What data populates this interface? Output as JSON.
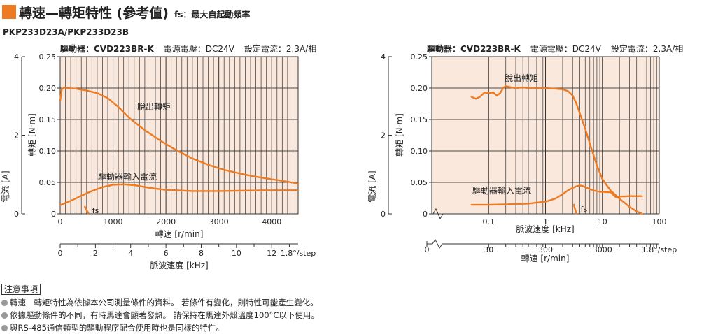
{
  "header": {
    "title": "轉速—轉矩特性 (參考值)",
    "subtitle": "fs：最大自起動頻率",
    "model": "PKP233D23A/PKP233D23B"
  },
  "colors": {
    "accent": "#ee7b22",
    "plot_bg": "#fbe8dc",
    "curve": "#ee7b22",
    "grid": "#4a4a4a"
  },
  "chart_data": [
    {
      "type": "line",
      "info": {
        "driver": "驅動器：CVD223BR-K",
        "voltage": "電源電壓：DC24V",
        "current": "設定電流：2.3A/相"
      },
      "x_axis": {
        "scale": "linear",
        "label": "轉速 [r/min]",
        "range": [
          0,
          4500
        ],
        "ticks": [
          "0",
          "1000",
          "2000",
          "3000",
          "4000"
        ]
      },
      "x2_axis": {
        "label": "脈波速度 [kHz]",
        "range": [
          0,
          13.5
        ],
        "ticks": [
          "0",
          "2",
          "4",
          "6",
          "8",
          "10",
          "12"
        ],
        "step_note": "1.8°/step"
      },
      "y_axis": {
        "label": "轉矩 [N·m]",
        "range": [
          0,
          0.25
        ],
        "ticks": [
          "0",
          "0.05",
          "0.10",
          "0.15",
          "0.20",
          "0.25"
        ]
      },
      "y2_axis": {
        "label": "電流 [A]",
        "range": [
          0,
          4
        ],
        "ticks": [
          "0",
          "2",
          "4"
        ]
      },
      "series": [
        {
          "name": "脫出轉矩",
          "axis": "torque",
          "x": [
            0,
            30,
            80,
            150,
            300,
            500,
            700,
            900,
            1100,
            1300,
            1600,
            1900,
            2200,
            2500,
            2800,
            3100,
            3400,
            3700,
            4000,
            4300,
            4500
          ],
          "y": [
            0.18,
            0.198,
            0.201,
            0.2,
            0.199,
            0.196,
            0.192,
            0.184,
            0.17,
            0.153,
            0.133,
            0.116,
            0.101,
            0.088,
            0.078,
            0.07,
            0.064,
            0.059,
            0.055,
            0.051,
            0.048
          ]
        },
        {
          "name": "驅動器輸入電流",
          "axis": "current",
          "x": [
            0,
            200,
            400,
            600,
            800,
            1000,
            1200,
            1400,
            1700,
            2000,
            2500,
            3000,
            3500,
            4000,
            4500
          ],
          "y": [
            0.22,
            0.33,
            0.46,
            0.58,
            0.68,
            0.74,
            0.75,
            0.73,
            0.66,
            0.61,
            0.58,
            0.58,
            0.59,
            0.6,
            0.6
          ]
        }
      ],
      "fs_label": "fs",
      "fs_x": 500
    },
    {
      "type": "line",
      "info": {
        "driver": "驅動器：CVD223BR-K",
        "voltage": "電源電壓：DC24V",
        "current": "設定電流：2.3A/相"
      },
      "x_axis": {
        "scale": "log",
        "label": "脈波速度 [kHz]",
        "range": [
          0.01,
          100
        ],
        "ticks": [
          "0.1",
          "1",
          "10",
          "100"
        ]
      },
      "x2_axis": {
        "label": "轉速 [r/min]",
        "ticks": [
          "0",
          "30",
          "300",
          "3000"
        ],
        "step_note": "1.8°/step"
      },
      "y_axis": {
        "label": "轉矩 [N·m]",
        "range": [
          0,
          0.25
        ],
        "ticks": [
          "0",
          "0.05",
          "0.10",
          "0.15",
          "0.20",
          "0.25"
        ]
      },
      "y2_axis": {
        "label": "電流 [A]",
        "range": [
          0,
          4
        ],
        "ticks": [
          "0",
          "2",
          "4"
        ]
      },
      "series": [
        {
          "name": "脫出轉矩",
          "axis": "torque",
          "x": [
            0.05,
            0.06,
            0.07,
            0.085,
            0.1,
            0.12,
            0.14,
            0.16,
            0.18,
            0.2,
            0.25,
            0.3,
            0.4,
            0.5,
            0.7,
            1.0,
            1.5,
            2.0,
            2.5,
            3.0,
            3.5,
            4.0,
            5.0,
            6.0,
            7.0,
            8.0,
            10,
            12,
            14,
            17,
            20,
            25,
            30,
            40,
            50
          ],
          "y": [
            0.186,
            0.183,
            0.186,
            0.193,
            0.192,
            0.193,
            0.188,
            0.192,
            0.2,
            0.203,
            0.201,
            0.2,
            0.201,
            0.2,
            0.2,
            0.2,
            0.199,
            0.198,
            0.195,
            0.188,
            0.175,
            0.16,
            0.135,
            0.112,
            0.093,
            0.077,
            0.055,
            0.045,
            0.037,
            0.03,
            0.024,
            0.017,
            0.011,
            0.004,
            0.0
          ]
        },
        {
          "name": "驅動器輸入電流",
          "axis": "current",
          "x": [
            0.05,
            0.1,
            0.2,
            0.5,
            1,
            1.5,
            2,
            2.5,
            3,
            3.5,
            4,
            4.5,
            5,
            6,
            8,
            10,
            14,
            17,
            20,
            30,
            50
          ],
          "y": [
            0.23,
            0.23,
            0.24,
            0.26,
            0.31,
            0.39,
            0.5,
            0.6,
            0.66,
            0.7,
            0.72,
            0.71,
            0.68,
            0.63,
            0.57,
            0.56,
            0.55,
            0.43,
            0.44,
            0.45,
            0.45
          ]
        }
      ],
      "fs_label": "fs",
      "fs_x": 3.3
    }
  ],
  "notes": {
    "heading": "注意事項",
    "items": [
      "轉速—轉矩特性為依據本公司測量條件的資料。 若條件有變化，則特性可能產生變化。",
      "依據驅動條件的不同，有時馬達會顯著發熱。 請保持在馬達外殼溫度100°C以下使用。",
      "與RS-485通信類型的驅動程序配合使用時也是同樣的特性。"
    ]
  }
}
